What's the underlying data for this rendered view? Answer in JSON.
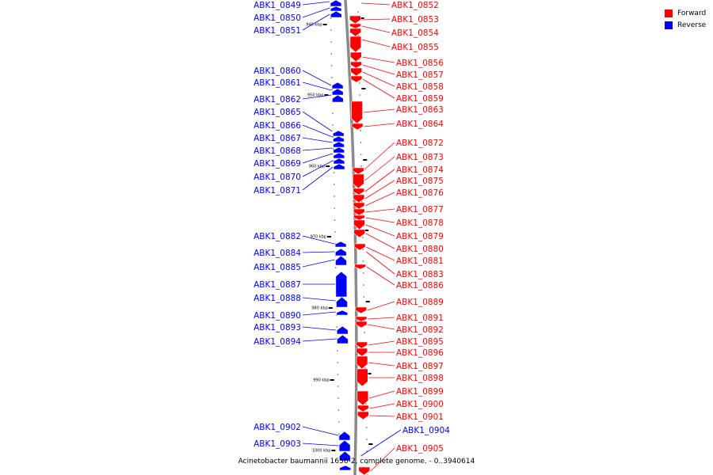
{
  "legend": {
    "forward_label": "Forward",
    "reverse_label": "Reverse",
    "forward_color": "#ff0000",
    "reverse_color": "#0000ff"
  },
  "caption": "Acinetobacter baumannii 1656-2, complete genome. - 0..3940614",
  "ticks": [
    "940 kbp",
    "950 kbp",
    "960 kbp",
    "970 kbp",
    "980 kbp",
    "990 kbp",
    "1000 kbp"
  ],
  "reverse_genes": [
    "ABK1_0849",
    "ABK1_0850",
    "ABK1_0851",
    "ABK1_0860",
    "ABK1_0861",
    "ABK1_0862",
    "ABK1_0865",
    "ABK1_0866",
    "ABK1_0867",
    "ABK1_0868",
    "ABK1_0869",
    "ABK1_0870",
    "ABK1_0871",
    "ABK1_0882",
    "ABK1_0884",
    "ABK1_0885",
    "ABK1_0887",
    "ABK1_0888",
    "ABK1_0890",
    "ABK1_0893",
    "ABK1_0894",
    "ABK1_0902",
    "ABK1_0903",
    "ABK1_0904"
  ],
  "forward_genes": [
    "ABK1_0852",
    "ABK1_0853",
    "ABK1_0854",
    "ABK1_0855",
    "ABK1_0856",
    "ABK1_0857",
    "ABK1_0858",
    "ABK1_0859",
    "ABK1_0863",
    "ABK1_0864",
    "ABK1_0872",
    "ABK1_0873",
    "ABK1_0874",
    "ABK1_0875",
    "ABK1_0876",
    "ABK1_0877",
    "ABK1_0878",
    "ABK1_0879",
    "ABK1_0880",
    "ABK1_0881",
    "ABK1_0883",
    "ABK1_0886",
    "ABK1_0889",
    "ABK1_0891",
    "ABK1_0892",
    "ABK1_0895",
    "ABK1_0896",
    "ABK1_0897",
    "ABK1_0898",
    "ABK1_0899",
    "ABK1_0900",
    "ABK1_0901",
    "ABK1_0905"
  ]
}
